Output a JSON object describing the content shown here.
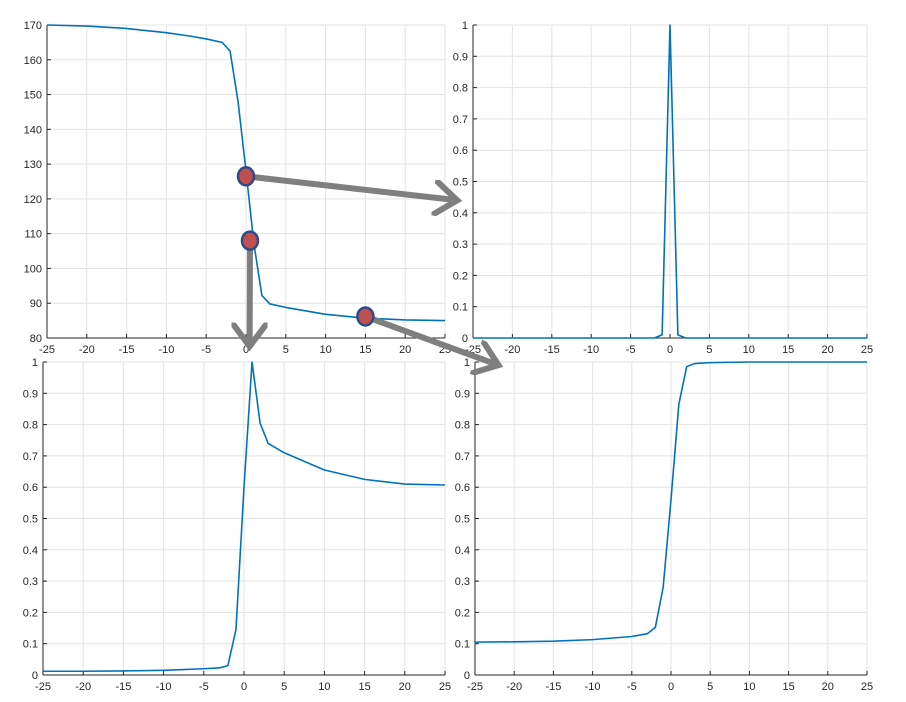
{
  "chart_data": [
    {
      "id": "top-left",
      "type": "line",
      "xlim": [
        -25,
        25
      ],
      "ylim": [
        80,
        170
      ],
      "xticks": [
        -25,
        -20,
        -15,
        -10,
        -5,
        0,
        5,
        10,
        15,
        20,
        25
      ],
      "yticks": [
        80,
        90,
        100,
        110,
        120,
        130,
        140,
        150,
        160,
        170
      ],
      "grid": true,
      "series": [
        {
          "x": [
            -25,
            -20,
            -15,
            -10,
            -7,
            -5,
            -3,
            -2,
            -1,
            0,
            1,
            2,
            3,
            5,
            10,
            15,
            20,
            25
          ],
          "y": [
            170,
            169.7,
            169,
            167.8,
            166.8,
            166,
            165,
            162.5,
            148,
            128,
            107,
            92.2,
            89.8,
            88.8,
            86.8,
            85.7,
            85.2,
            85
          ]
        }
      ],
      "markers": [
        {
          "x": 0,
          "y": 126.5
        },
        {
          "x": 0.5,
          "y": 108
        },
        {
          "x": 15,
          "y": 86.2
        }
      ]
    },
    {
      "id": "top-right",
      "type": "line",
      "xlim": [
        -25,
        25
      ],
      "ylim": [
        0,
        1
      ],
      "xticks": [
        -25,
        -20,
        -15,
        -10,
        -5,
        0,
        5,
        10,
        15,
        20,
        25
      ],
      "yticks": [
        0,
        0.1,
        0.2,
        0.3,
        0.4,
        0.5,
        0.6,
        0.7,
        0.8,
        0.9,
        1
      ],
      "grid": true,
      "series": [
        {
          "x": [
            -25,
            -2,
            -1,
            0,
            1,
            2,
            25
          ],
          "y": [
            0,
            0,
            0.01,
            1,
            0.01,
            0,
            0
          ]
        }
      ]
    },
    {
      "id": "bottom-left",
      "type": "line",
      "xlim": [
        -25,
        25
      ],
      "ylim": [
        0,
        1
      ],
      "xticks": [
        -25,
        -20,
        -15,
        -10,
        -5,
        0,
        5,
        10,
        15,
        20,
        25
      ],
      "yticks": [
        0,
        0.1,
        0.2,
        0.3,
        0.4,
        0.5,
        0.6,
        0.7,
        0.8,
        0.9,
        1
      ],
      "grid": true,
      "series": [
        {
          "x": [
            -25,
            -20,
            -15,
            -10,
            -5,
            -3,
            -2,
            -1,
            0,
            1,
            2,
            3,
            5,
            10,
            15,
            20,
            25
          ],
          "y": [
            0.012,
            0.012,
            0.013,
            0.015,
            0.02,
            0.023,
            0.03,
            0.145,
            0.6,
            1.0,
            0.805,
            0.74,
            0.71,
            0.655,
            0.625,
            0.61,
            0.607
          ]
        }
      ]
    },
    {
      "id": "bottom-right",
      "type": "line",
      "xlim": [
        -25,
        25
      ],
      "ylim": [
        0,
        1
      ],
      "xticks": [
        -25,
        -20,
        -15,
        -10,
        -5,
        0,
        5,
        10,
        15,
        20,
        25
      ],
      "yticks": [
        0,
        0.1,
        0.2,
        0.3,
        0.4,
        0.5,
        0.6,
        0.7,
        0.8,
        0.9,
        1
      ],
      "grid": true,
      "series": [
        {
          "x": [
            -25,
            -20,
            -15,
            -10,
            -5,
            -3,
            -2,
            -1,
            0,
            1,
            2,
            3,
            5,
            10,
            15,
            20,
            25
          ],
          "y": [
            0.105,
            0.106,
            0.108,
            0.113,
            0.123,
            0.132,
            0.152,
            0.28,
            0.56,
            0.865,
            0.985,
            0.995,
            0.998,
            1,
            1,
            1,
            1
          ]
        }
      ]
    }
  ],
  "arrows": [
    {
      "from_chart": "top-left",
      "from_marker": 0,
      "to_chart": "top-right",
      "to": {
        "x": -27,
        "y": 0.44
      }
    },
    {
      "from_chart": "top-left",
      "from_marker": 1,
      "to_chart": "bottom-left",
      "to": {
        "x": 0.7,
        "y": 1.05
      }
    },
    {
      "from_chart": "top-left",
      "from_marker": 2,
      "to_chart": "bottom-right",
      "to": {
        "x": -22,
        "y": 0.99
      }
    }
  ],
  "colors": {
    "line": "#0072bd",
    "grid": "#e3e3e3",
    "axis": "#262626",
    "arrow": "#7f7f7f",
    "marker_fill": "#c0504d",
    "marker_stroke": "#2e4a8a"
  }
}
